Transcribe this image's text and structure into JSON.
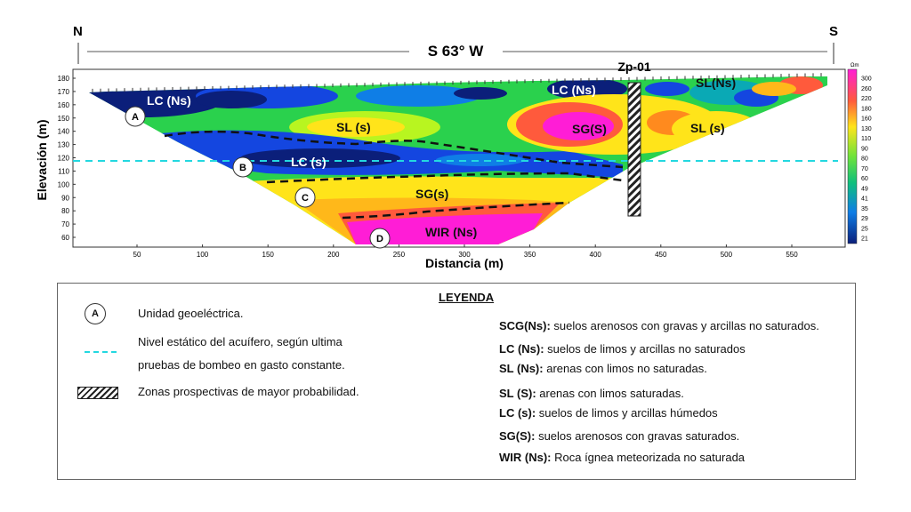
{
  "direction": {
    "north": "N",
    "south": "S",
    "bearing": "S 63° W"
  },
  "axes": {
    "ylabel": "Elevación (m)",
    "xlabel": "Distancia (m)",
    "yticks": [
      180,
      170,
      160,
      150,
      140,
      130,
      120,
      110,
      100,
      90,
      80,
      70,
      60
    ],
    "xticks": [
      50,
      100,
      150,
      200,
      250,
      300,
      350,
      400,
      450,
      500,
      550
    ]
  },
  "scale": {
    "unit": "Ωm",
    "values": [
      300,
      260,
      220,
      180,
      160,
      130,
      110,
      90,
      80,
      70,
      60,
      49,
      41,
      35,
      29,
      25,
      21
    ],
    "colors": [
      "#ff1dd6",
      "#ff3fc4",
      "#ff45a6",
      "#ff4f7b",
      "#ff5a3c",
      "#ff8a1e",
      "#ffb81a",
      "#ffe41a",
      "#f4ff1d",
      "#b8f520",
      "#6fe33a",
      "#2ad14d",
      "#10c07c",
      "#0aa9b5",
      "#0f7ee6",
      "#1446e0",
      "#0b1f7a"
    ]
  },
  "borehole": {
    "label": "Zp-01"
  },
  "units": [
    {
      "id": "A",
      "label": "LC (Ns)"
    },
    {
      "id": "B",
      "label": "LC (s)"
    },
    {
      "id": "C",
      "label": "SG(s)"
    },
    {
      "id": "D",
      "label": "WIR (Ns)"
    }
  ],
  "zone_labels": {
    "lc_ns_left": "LC (Ns)",
    "sl_s_left": "SL (s)",
    "lc_s": "LC (s)",
    "sg_s": "SG(s)",
    "wir": "WIR (Ns)",
    "lc_ns_right": "LC (Ns)",
    "sg_S": "SG(S)",
    "sl_s_right": "SL (s)",
    "sl_ns": "SL(Ns)"
  },
  "legend": {
    "title": "LEYENDA",
    "symbol_circle_letter": "A",
    "symbol_circle": "Unidad geoeléctrica.",
    "symbol_water_1": "Nivel estático del acuífero, según ultima",
    "symbol_water_2": "pruebas de bombeo en gasto constante.",
    "symbol_hatch": "Zonas prospectivas de mayor probabilidad.",
    "entries": [
      {
        "code": "SCG(Ns):",
        "desc": " suelos arenosos con gravas y arcillas no saturados."
      },
      {
        "code": "LC (Ns):",
        "desc": " suelos de limos y arcillas no saturados"
      },
      {
        "code": "SL (Ns):",
        "desc": " arenas con limos no saturadas."
      },
      {
        "code": "SL (S):",
        "desc": " arenas con limos saturadas."
      },
      {
        "code": "LC (s):",
        "desc": " suelos de limos y arcillas húmedos"
      },
      {
        "code": "SG(S):",
        "desc": " suelos arenosos con gravas saturados."
      },
      {
        "code": "WIR (Ns):",
        "desc": " Roca ígnea meteorizada no saturada"
      }
    ]
  }
}
